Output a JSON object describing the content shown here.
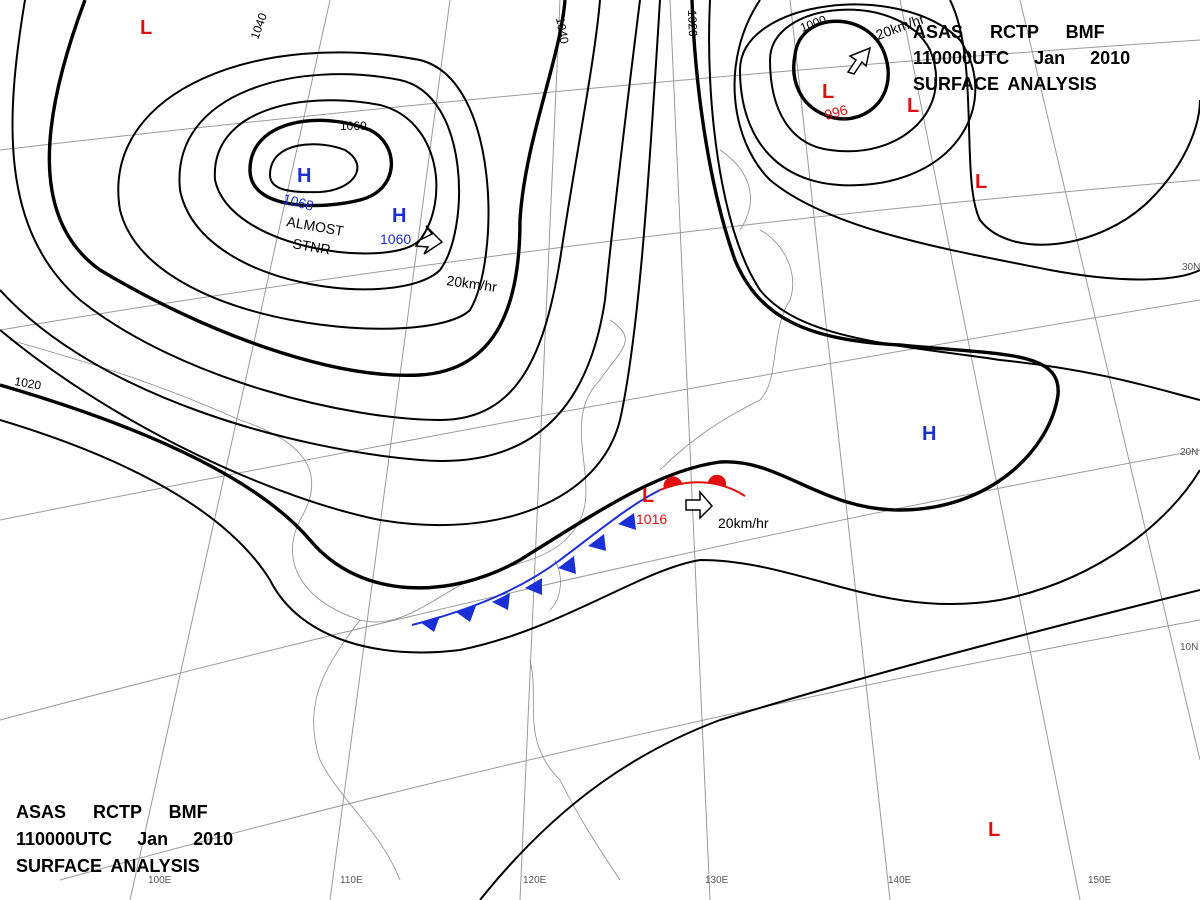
{
  "header": {
    "lines": [
      "ASAS RCTP BMF",
      "110000UTC Jan 2010",
      "SURFACE ANALYSIS"
    ]
  },
  "footer": {
    "lines": [
      "ASAS RCTP BMF",
      "110000UTC Jan 2010",
      "SURFACE ANALYSIS"
    ]
  },
  "isobar_labels": [
    "1040",
    "1040",
    "1060",
    "1020",
    "1020",
    "1000"
  ],
  "centers": [
    {
      "symbol": "H",
      "value": "1068"
    },
    {
      "symbol": "H",
      "value": "1060"
    },
    {
      "symbol": "H"
    },
    {
      "symbol": "L",
      "value": "996"
    },
    {
      "symbol": "L",
      "value": "1016"
    },
    {
      "symbol": "L"
    },
    {
      "symbol": "L"
    },
    {
      "symbol": "L"
    },
    {
      "symbol": "L"
    }
  ],
  "annotations": [
    "ALMOST",
    "STNR",
    "20km/hr",
    "20km/hr",
    "20km/hr"
  ],
  "grid_labels": [
    "30N",
    "20N",
    "10N",
    "100E",
    "110E",
    "120E",
    "130E",
    "140E",
    "150E"
  ]
}
